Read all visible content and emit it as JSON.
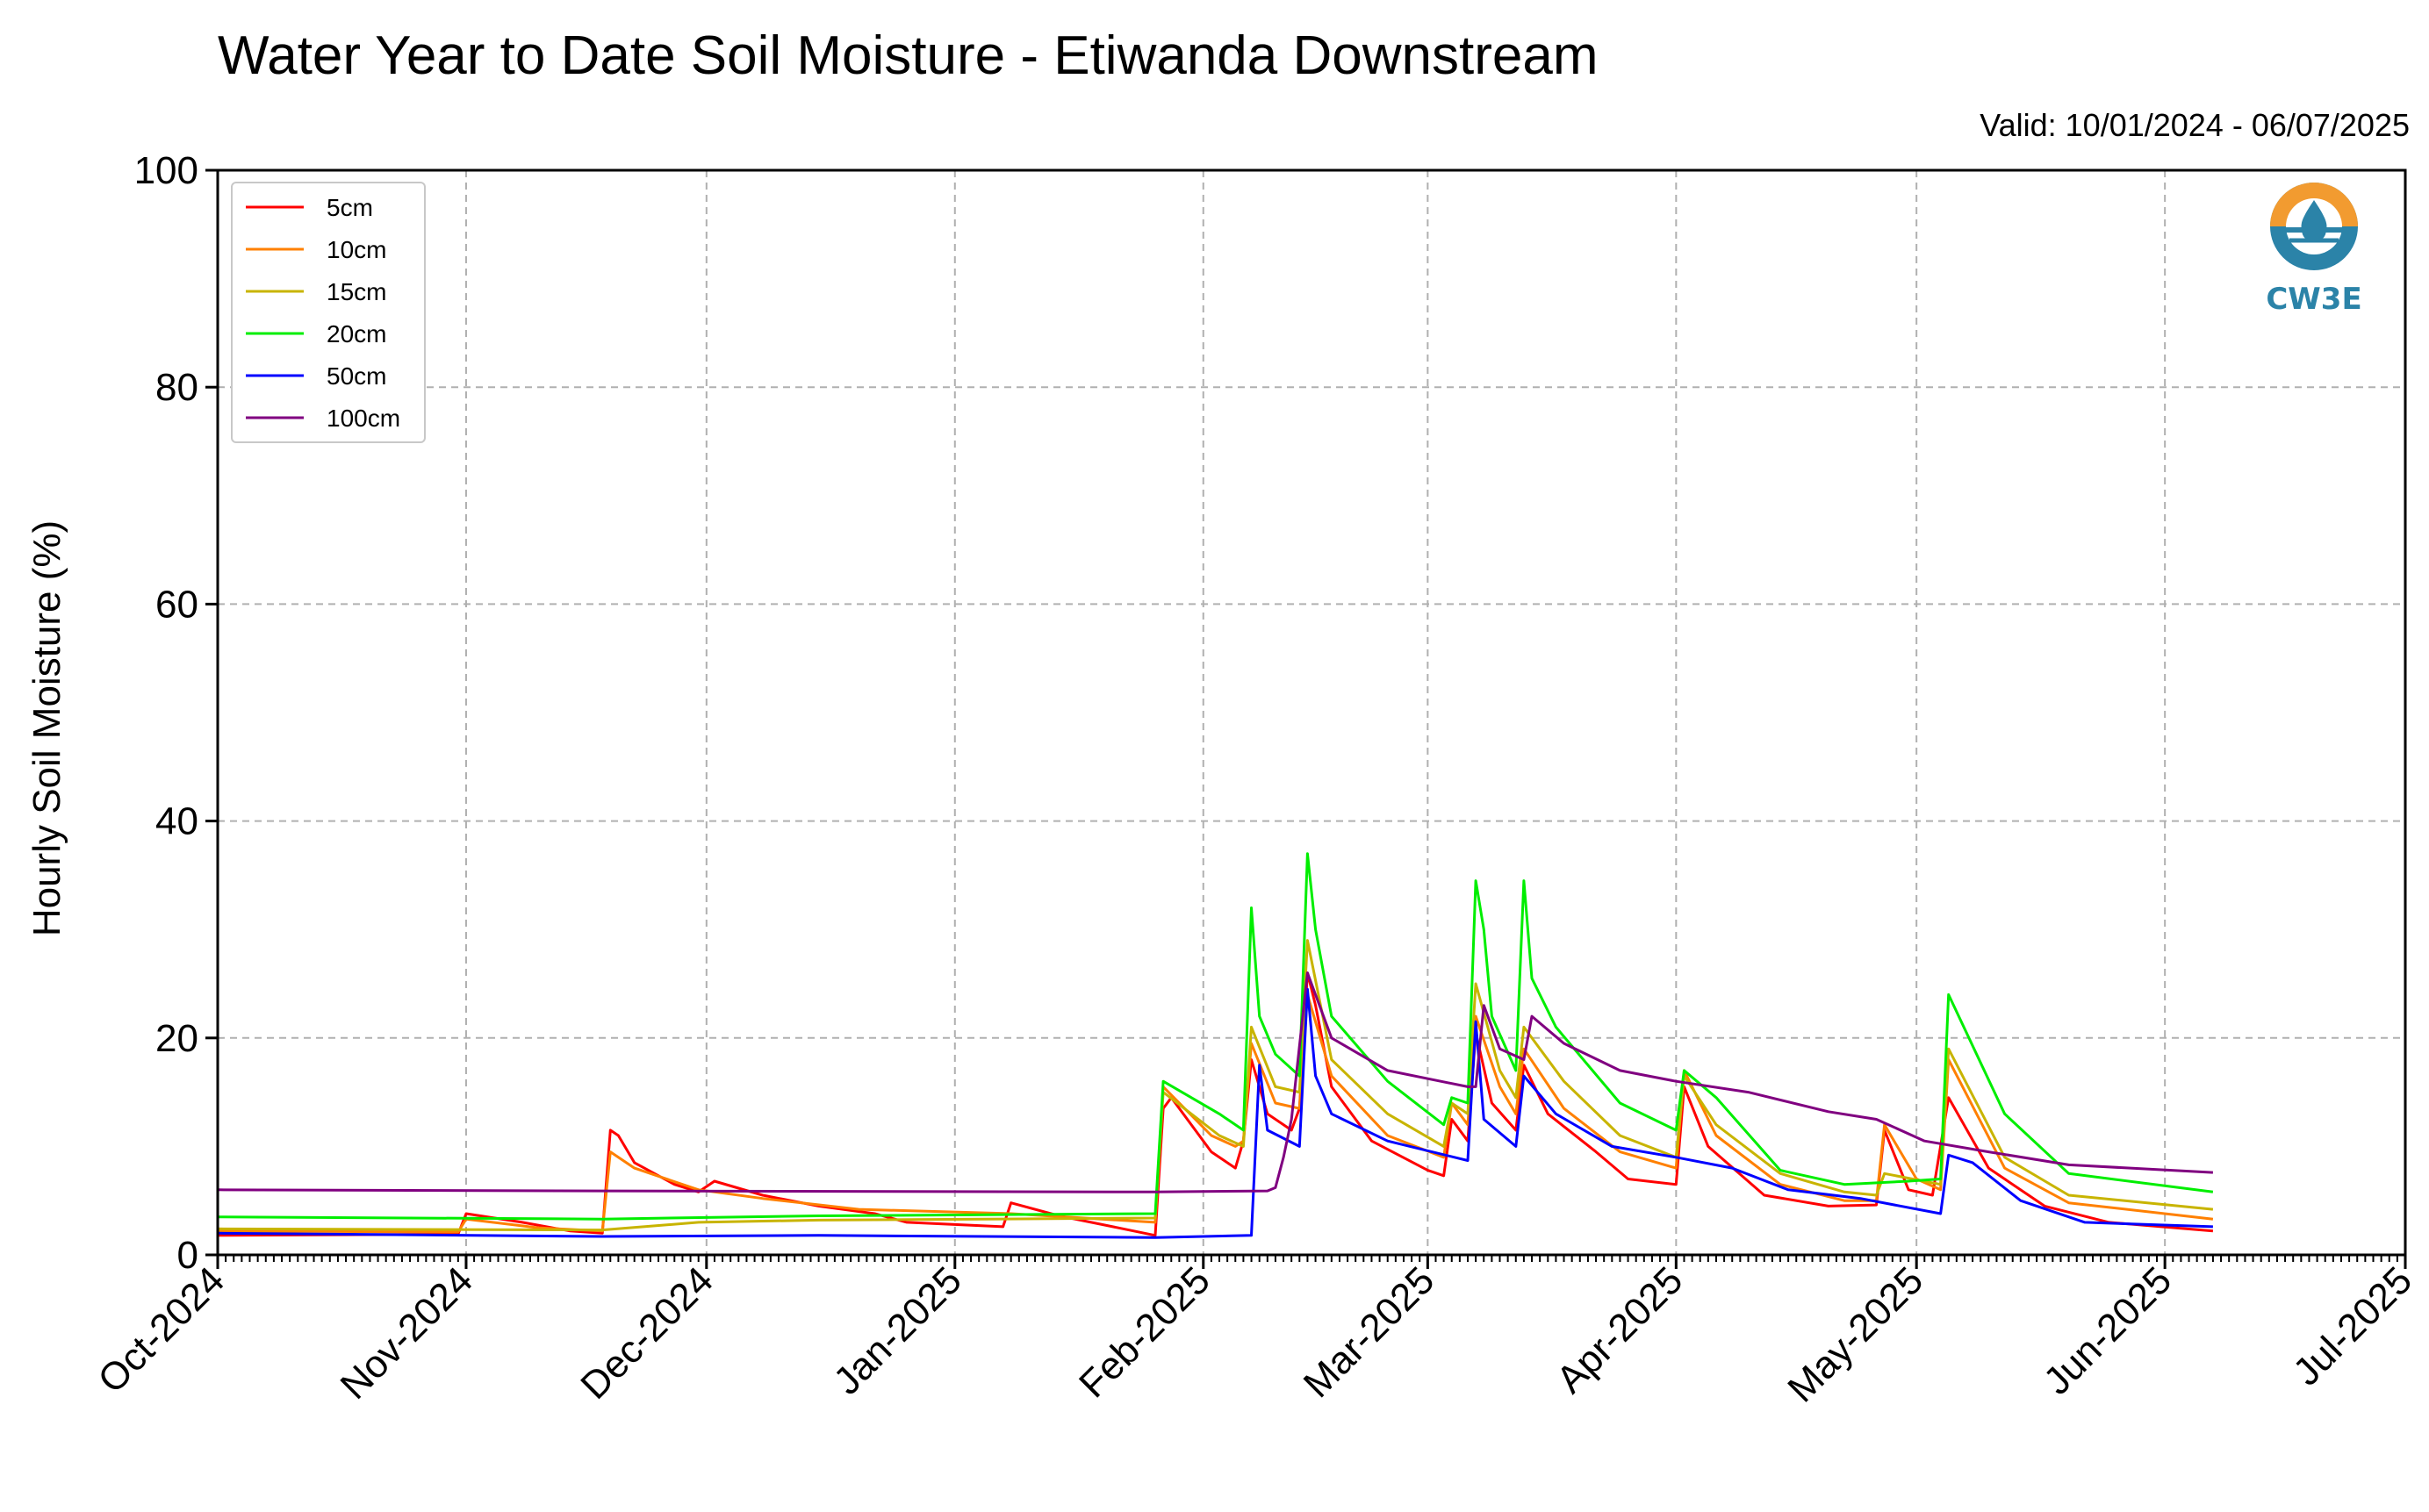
{
  "chart_data": {
    "type": "line",
    "title": "Water Year to Date Soil Moisture - Etiwanda Downstream",
    "subtitle": "Valid: 10/01/2024 - 06/07/2025",
    "ylabel": "Hourly Soil Moisture (%)",
    "xlabel": "",
    "xlim": [
      "2024-10-01",
      "2025-07-01"
    ],
    "ylim": [
      0,
      100
    ],
    "x_ticks": [
      "Oct-2024",
      "Nov-2024",
      "Dec-2024",
      "Jan-2025",
      "Feb-2025",
      "Mar-2025",
      "Apr-2025",
      "May-2025",
      "Jun-2025",
      "Jul-2025"
    ],
    "x_tick_dates": [
      "2024-10-01",
      "2024-11-01",
      "2024-12-01",
      "2025-01-01",
      "2025-02-01",
      "2025-03-01",
      "2025-04-01",
      "2025-05-01",
      "2025-06-01",
      "2025-07-01"
    ],
    "y_ticks": [
      0,
      20,
      40,
      60,
      80,
      100
    ],
    "grid": true,
    "legend_position": "top-left",
    "series": [
      {
        "name": "5cm",
        "color": "#ff0000",
        "points": [
          [
            "2024-10-01",
            1.8
          ],
          [
            "2024-10-31",
            1.9
          ],
          [
            "2024-11-01",
            3.8
          ],
          [
            "2024-11-08",
            3.0
          ],
          [
            "2024-11-14",
            2.2
          ],
          [
            "2024-11-18",
            2.0
          ],
          [
            "2024-11-19",
            11.5
          ],
          [
            "2024-11-20",
            11.0
          ],
          [
            "2024-11-22",
            8.5
          ],
          [
            "2024-11-27",
            6.5
          ],
          [
            "2024-11-30",
            5.8
          ],
          [
            "2024-12-02",
            6.8
          ],
          [
            "2024-12-08",
            5.5
          ],
          [
            "2024-12-15",
            4.5
          ],
          [
            "2024-12-22",
            3.8
          ],
          [
            "2024-12-26",
            3.0
          ],
          [
            "2025-01-07",
            2.6
          ],
          [
            "2025-01-08",
            4.8
          ],
          [
            "2025-01-14",
            3.6
          ],
          [
            "2025-01-22",
            2.4
          ],
          [
            "2025-01-26",
            1.8
          ],
          [
            "2025-01-27",
            13.5
          ],
          [
            "2025-01-28",
            14.5
          ],
          [
            "2025-02-02",
            9.5
          ],
          [
            "2025-02-05",
            8.0
          ],
          [
            "2025-02-06",
            10.5
          ],
          [
            "2025-02-07",
            18.0
          ],
          [
            "2025-02-09",
            13.0
          ],
          [
            "2025-02-12",
            11.5
          ],
          [
            "2025-02-13",
            13.5
          ],
          [
            "2025-02-14",
            26.0
          ],
          [
            "2025-02-15",
            23.0
          ],
          [
            "2025-02-17",
            15.5
          ],
          [
            "2025-02-22",
            10.5
          ],
          [
            "2025-03-01",
            7.8
          ],
          [
            "2025-03-03",
            7.3
          ],
          [
            "2025-03-04",
            12.5
          ],
          [
            "2025-03-06",
            10.5
          ],
          [
            "2025-03-07",
            20.5
          ],
          [
            "2025-03-09",
            14.0
          ],
          [
            "2025-03-12",
            11.5
          ],
          [
            "2025-03-13",
            17.5
          ],
          [
            "2025-03-16",
            13.0
          ],
          [
            "2025-03-22",
            9.5
          ],
          [
            "2025-03-26",
            7.0
          ],
          [
            "2025-04-01",
            6.5
          ],
          [
            "2025-04-02",
            15.5
          ],
          [
            "2025-04-05",
            10.0
          ],
          [
            "2025-04-12",
            5.5
          ],
          [
            "2025-04-20",
            4.5
          ],
          [
            "2025-04-26",
            4.6
          ],
          [
            "2025-04-27",
            11.5
          ],
          [
            "2025-04-30",
            6.0
          ],
          [
            "2025-05-03",
            5.5
          ],
          [
            "2025-05-05",
            14.5
          ],
          [
            "2025-05-10",
            8.0
          ],
          [
            "2025-05-17",
            4.5
          ],
          [
            "2025-05-25",
            3.0
          ],
          [
            "2025-06-07",
            2.2
          ]
        ]
      },
      {
        "name": "10cm",
        "color": "#ff8000",
        "points": [
          [
            "2024-10-01",
            2.2
          ],
          [
            "2024-10-31",
            2.1
          ],
          [
            "2024-11-01",
            3.3
          ],
          [
            "2024-11-10",
            2.5
          ],
          [
            "2024-11-18",
            2.2
          ],
          [
            "2024-11-19",
            9.5
          ],
          [
            "2024-11-22",
            8.0
          ],
          [
            "2024-11-30",
            6.0
          ],
          [
            "2024-12-08",
            5.2
          ],
          [
            "2024-12-20",
            4.2
          ],
          [
            "2025-01-08",
            3.8
          ],
          [
            "2025-01-26",
            3.0
          ],
          [
            "2025-01-27",
            15.5
          ],
          [
            "2025-02-02",
            11.0
          ],
          [
            "2025-02-05",
            10.0
          ],
          [
            "2025-02-06",
            10.5
          ],
          [
            "2025-02-07",
            19.5
          ],
          [
            "2025-02-10",
            14.0
          ],
          [
            "2025-02-13",
            13.5
          ],
          [
            "2025-02-14",
            24.0
          ],
          [
            "2025-02-17",
            16.5
          ],
          [
            "2025-02-24",
            11.0
          ],
          [
            "2025-03-03",
            9.0
          ],
          [
            "2025-03-04",
            14.0
          ],
          [
            "2025-03-06",
            12.0
          ],
          [
            "2025-03-07",
            22.0
          ],
          [
            "2025-03-10",
            15.5
          ],
          [
            "2025-03-12",
            13.0
          ],
          [
            "2025-03-13",
            19.0
          ],
          [
            "2025-03-18",
            13.5
          ],
          [
            "2025-03-25",
            9.5
          ],
          [
            "2025-04-01",
            8.0
          ],
          [
            "2025-04-02",
            17.0
          ],
          [
            "2025-04-06",
            11.0
          ],
          [
            "2025-04-14",
            6.5
          ],
          [
            "2025-04-22",
            5.0
          ],
          [
            "2025-04-26",
            5.0
          ],
          [
            "2025-04-27",
            12.0
          ],
          [
            "2025-05-01",
            7.0
          ],
          [
            "2025-05-04",
            6.0
          ],
          [
            "2025-05-05",
            18.0
          ],
          [
            "2025-05-12",
            8.0
          ],
          [
            "2025-05-20",
            4.8
          ],
          [
            "2025-06-07",
            3.3
          ]
        ]
      },
      {
        "name": "15cm",
        "color": "#c8b400",
        "points": [
          [
            "2024-10-01",
            2.4
          ],
          [
            "2024-11-18",
            2.3
          ],
          [
            "2024-11-30",
            3.0
          ],
          [
            "2024-12-15",
            3.2
          ],
          [
            "2025-01-26",
            3.4
          ],
          [
            "2025-01-27",
            15.0
          ],
          [
            "2025-02-03",
            11.0
          ],
          [
            "2025-02-06",
            10.0
          ],
          [
            "2025-02-07",
            21.0
          ],
          [
            "2025-02-10",
            15.5
          ],
          [
            "2025-02-13",
            15.0
          ],
          [
            "2025-02-14",
            29.0
          ],
          [
            "2025-02-17",
            18.0
          ],
          [
            "2025-02-24",
            13.0
          ],
          [
            "2025-03-03",
            10.0
          ],
          [
            "2025-03-04",
            14.0
          ],
          [
            "2025-03-06",
            13.0
          ],
          [
            "2025-03-07",
            25.0
          ],
          [
            "2025-03-10",
            17.0
          ],
          [
            "2025-03-12",
            14.5
          ],
          [
            "2025-03-13",
            21.0
          ],
          [
            "2025-03-18",
            16.0
          ],
          [
            "2025-03-25",
            11.0
          ],
          [
            "2025-04-01",
            9.0
          ],
          [
            "2025-04-02",
            16.5
          ],
          [
            "2025-04-06",
            12.0
          ],
          [
            "2025-04-14",
            7.5
          ],
          [
            "2025-04-22",
            5.8
          ],
          [
            "2025-04-26",
            5.5
          ],
          [
            "2025-04-27",
            7.5
          ],
          [
            "2025-05-04",
            6.5
          ],
          [
            "2025-05-05",
            19.0
          ],
          [
            "2025-05-12",
            9.0
          ],
          [
            "2025-05-20",
            5.5
          ],
          [
            "2025-06-07",
            4.2
          ]
        ]
      },
      {
        "name": "20cm",
        "color": "#00ee00",
        "points": [
          [
            "2024-10-01",
            3.5
          ],
          [
            "2024-11-18",
            3.3
          ],
          [
            "2024-12-15",
            3.6
          ],
          [
            "2025-01-26",
            3.8
          ],
          [
            "2025-01-27",
            16.0
          ],
          [
            "2025-02-03",
            13.0
          ],
          [
            "2025-02-06",
            11.5
          ],
          [
            "2025-02-07",
            32.0
          ],
          [
            "2025-02-08",
            22.0
          ],
          [
            "2025-02-10",
            18.5
          ],
          [
            "2025-02-13",
            16.5
          ],
          [
            "2025-02-14",
            37.0
          ],
          [
            "2025-02-15",
            30.0
          ],
          [
            "2025-02-17",
            22.0
          ],
          [
            "2025-02-24",
            16.0
          ],
          [
            "2025-03-03",
            12.0
          ],
          [
            "2025-03-04",
            14.5
          ],
          [
            "2025-03-06",
            14.0
          ],
          [
            "2025-03-07",
            34.5
          ],
          [
            "2025-03-08",
            30.0
          ],
          [
            "2025-03-09",
            22.0
          ],
          [
            "2025-03-12",
            17.0
          ],
          [
            "2025-03-13",
            34.5
          ],
          [
            "2025-03-14",
            25.5
          ],
          [
            "2025-03-17",
            21.0
          ],
          [
            "2025-03-25",
            14.0
          ],
          [
            "2025-04-01",
            11.5
          ],
          [
            "2025-04-02",
            17.0
          ],
          [
            "2025-04-06",
            14.5
          ],
          [
            "2025-04-14",
            7.8
          ],
          [
            "2025-04-22",
            6.5
          ],
          [
            "2025-04-30",
            6.8
          ],
          [
            "2025-05-04",
            7.0
          ],
          [
            "2025-05-05",
            24.0
          ],
          [
            "2025-05-12",
            13.0
          ],
          [
            "2025-05-20",
            7.5
          ],
          [
            "2025-06-07",
            5.8
          ]
        ]
      },
      {
        "name": "50cm",
        "color": "#0000ff",
        "points": [
          [
            "2024-10-01",
            2.0
          ],
          [
            "2024-11-18",
            1.7
          ],
          [
            "2024-12-15",
            1.8
          ],
          [
            "2025-01-26",
            1.6
          ],
          [
            "2025-02-07",
            1.8
          ],
          [
            "2025-02-08",
            17.5
          ],
          [
            "2025-02-09",
            11.5
          ],
          [
            "2025-02-13",
            10.0
          ],
          [
            "2025-02-14",
            24.5
          ],
          [
            "2025-02-15",
            16.5
          ],
          [
            "2025-02-17",
            13.0
          ],
          [
            "2025-02-24",
            10.5
          ],
          [
            "2025-03-06",
            8.7
          ],
          [
            "2025-03-07",
            21.5
          ],
          [
            "2025-03-08",
            12.5
          ],
          [
            "2025-03-12",
            10.0
          ],
          [
            "2025-03-13",
            16.5
          ],
          [
            "2025-03-17",
            13.0
          ],
          [
            "2025-03-24",
            10.0
          ],
          [
            "2025-04-01",
            9.0
          ],
          [
            "2025-04-08",
            8.0
          ],
          [
            "2025-04-15",
            6.0
          ],
          [
            "2025-04-24",
            5.2
          ],
          [
            "2025-05-04",
            3.8
          ],
          [
            "2025-05-05",
            9.2
          ],
          [
            "2025-05-08",
            8.5
          ],
          [
            "2025-05-14",
            5.0
          ],
          [
            "2025-05-22",
            3.0
          ],
          [
            "2025-06-07",
            2.6
          ]
        ]
      },
      {
        "name": "100cm",
        "color": "#800080",
        "points": [
          [
            "2024-10-01",
            6.0
          ],
          [
            "2024-11-18",
            5.9
          ],
          [
            "2025-01-26",
            5.8
          ],
          [
            "2025-02-09",
            5.9
          ],
          [
            "2025-02-10",
            6.2
          ],
          [
            "2025-02-11",
            9.0
          ],
          [
            "2025-02-12",
            12.5
          ],
          [
            "2025-02-14",
            26.0
          ],
          [
            "2025-02-17",
            20.0
          ],
          [
            "2025-02-24",
            17.0
          ],
          [
            "2025-03-06",
            15.5
          ],
          [
            "2025-03-07",
            15.5
          ],
          [
            "2025-03-08",
            23.0
          ],
          [
            "2025-03-10",
            19.0
          ],
          [
            "2025-03-13",
            18.0
          ],
          [
            "2025-03-14",
            22.0
          ],
          [
            "2025-03-18",
            19.5
          ],
          [
            "2025-03-25",
            17.0
          ],
          [
            "2025-04-01",
            16.0
          ],
          [
            "2025-04-10",
            15.0
          ],
          [
            "2025-04-20",
            13.2
          ],
          [
            "2025-04-26",
            12.5
          ],
          [
            "2025-05-02",
            10.5
          ],
          [
            "2025-05-10",
            9.5
          ],
          [
            "2025-05-20",
            8.3
          ],
          [
            "2025-06-07",
            7.6
          ]
        ]
      }
    ]
  },
  "logo": {
    "text": "CW3E",
    "accent_color": "#f29b30",
    "brand_color": "#2b83a8"
  }
}
